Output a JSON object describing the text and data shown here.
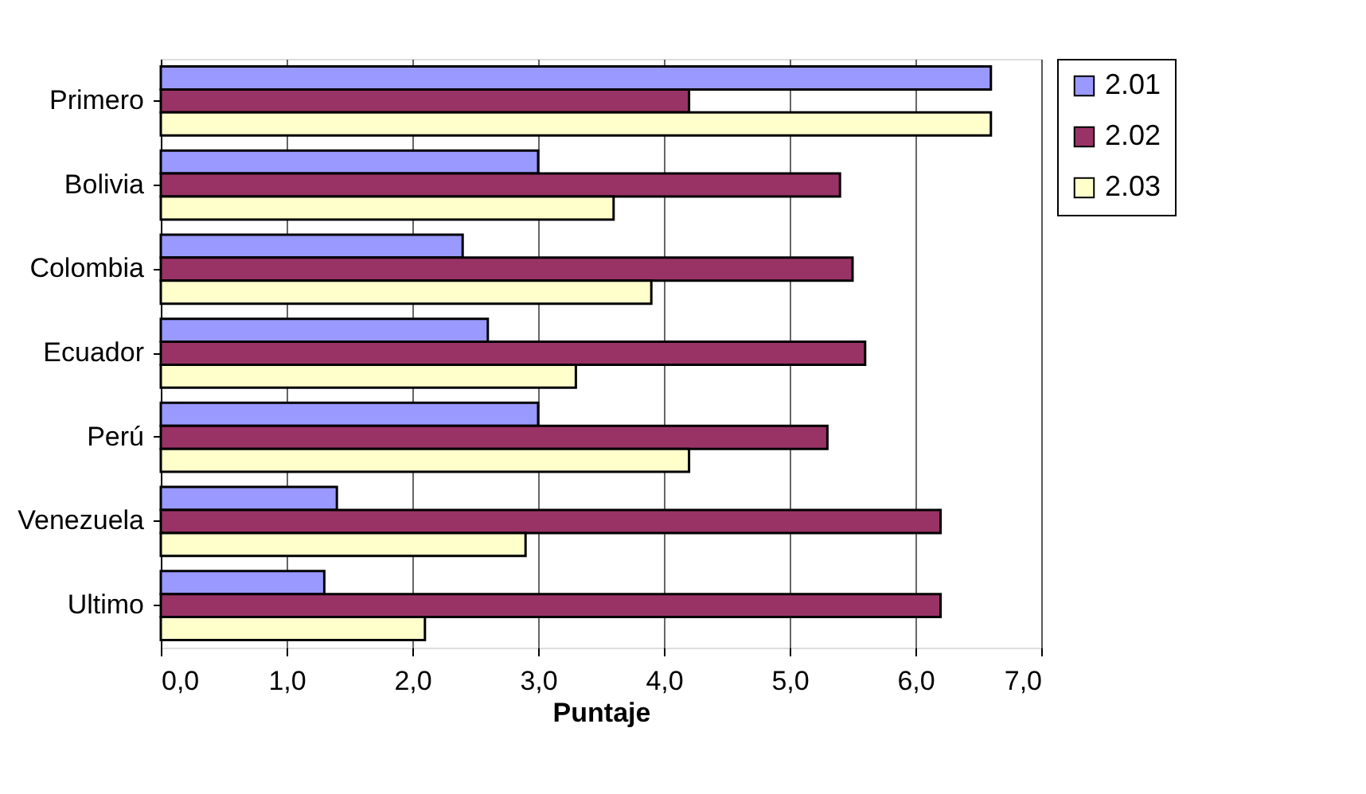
{
  "chart_data": {
    "type": "bar",
    "orientation": "horizontal",
    "xlabel": "Puntaje",
    "categories": [
      "Primero",
      "Bolivia",
      "Colombia",
      "Ecuador",
      "Perú",
      "Venezuela",
      "Ultimo"
    ],
    "series": [
      {
        "name": "2.01",
        "color": "#9999ff",
        "values": [
          6.6,
          3.0,
          2.4,
          2.6,
          3.0,
          1.4,
          1.3
        ]
      },
      {
        "name": "2.02",
        "color": "#993366",
        "values": [
          4.2,
          5.4,
          5.5,
          5.6,
          5.3,
          6.2,
          6.2
        ]
      },
      {
        "name": "2.03",
        "color": "#ffffcc",
        "values": [
          6.6,
          3.6,
          3.9,
          3.3,
          4.2,
          2.9,
          2.1
        ]
      }
    ],
    "xlim": [
      0,
      7
    ],
    "xticks": [
      {
        "value": 0,
        "label": "0,0"
      },
      {
        "value": 1,
        "label": "1,0"
      },
      {
        "value": 2,
        "label": "2,0"
      },
      {
        "value": 3,
        "label": "3,0"
      },
      {
        "value": 4,
        "label": "4,0"
      },
      {
        "value": 5,
        "label": "5,0"
      },
      {
        "value": 6,
        "label": "6,0"
      },
      {
        "value": 7,
        "label": "7,0"
      }
    ],
    "grid": "x",
    "legend": "right"
  }
}
